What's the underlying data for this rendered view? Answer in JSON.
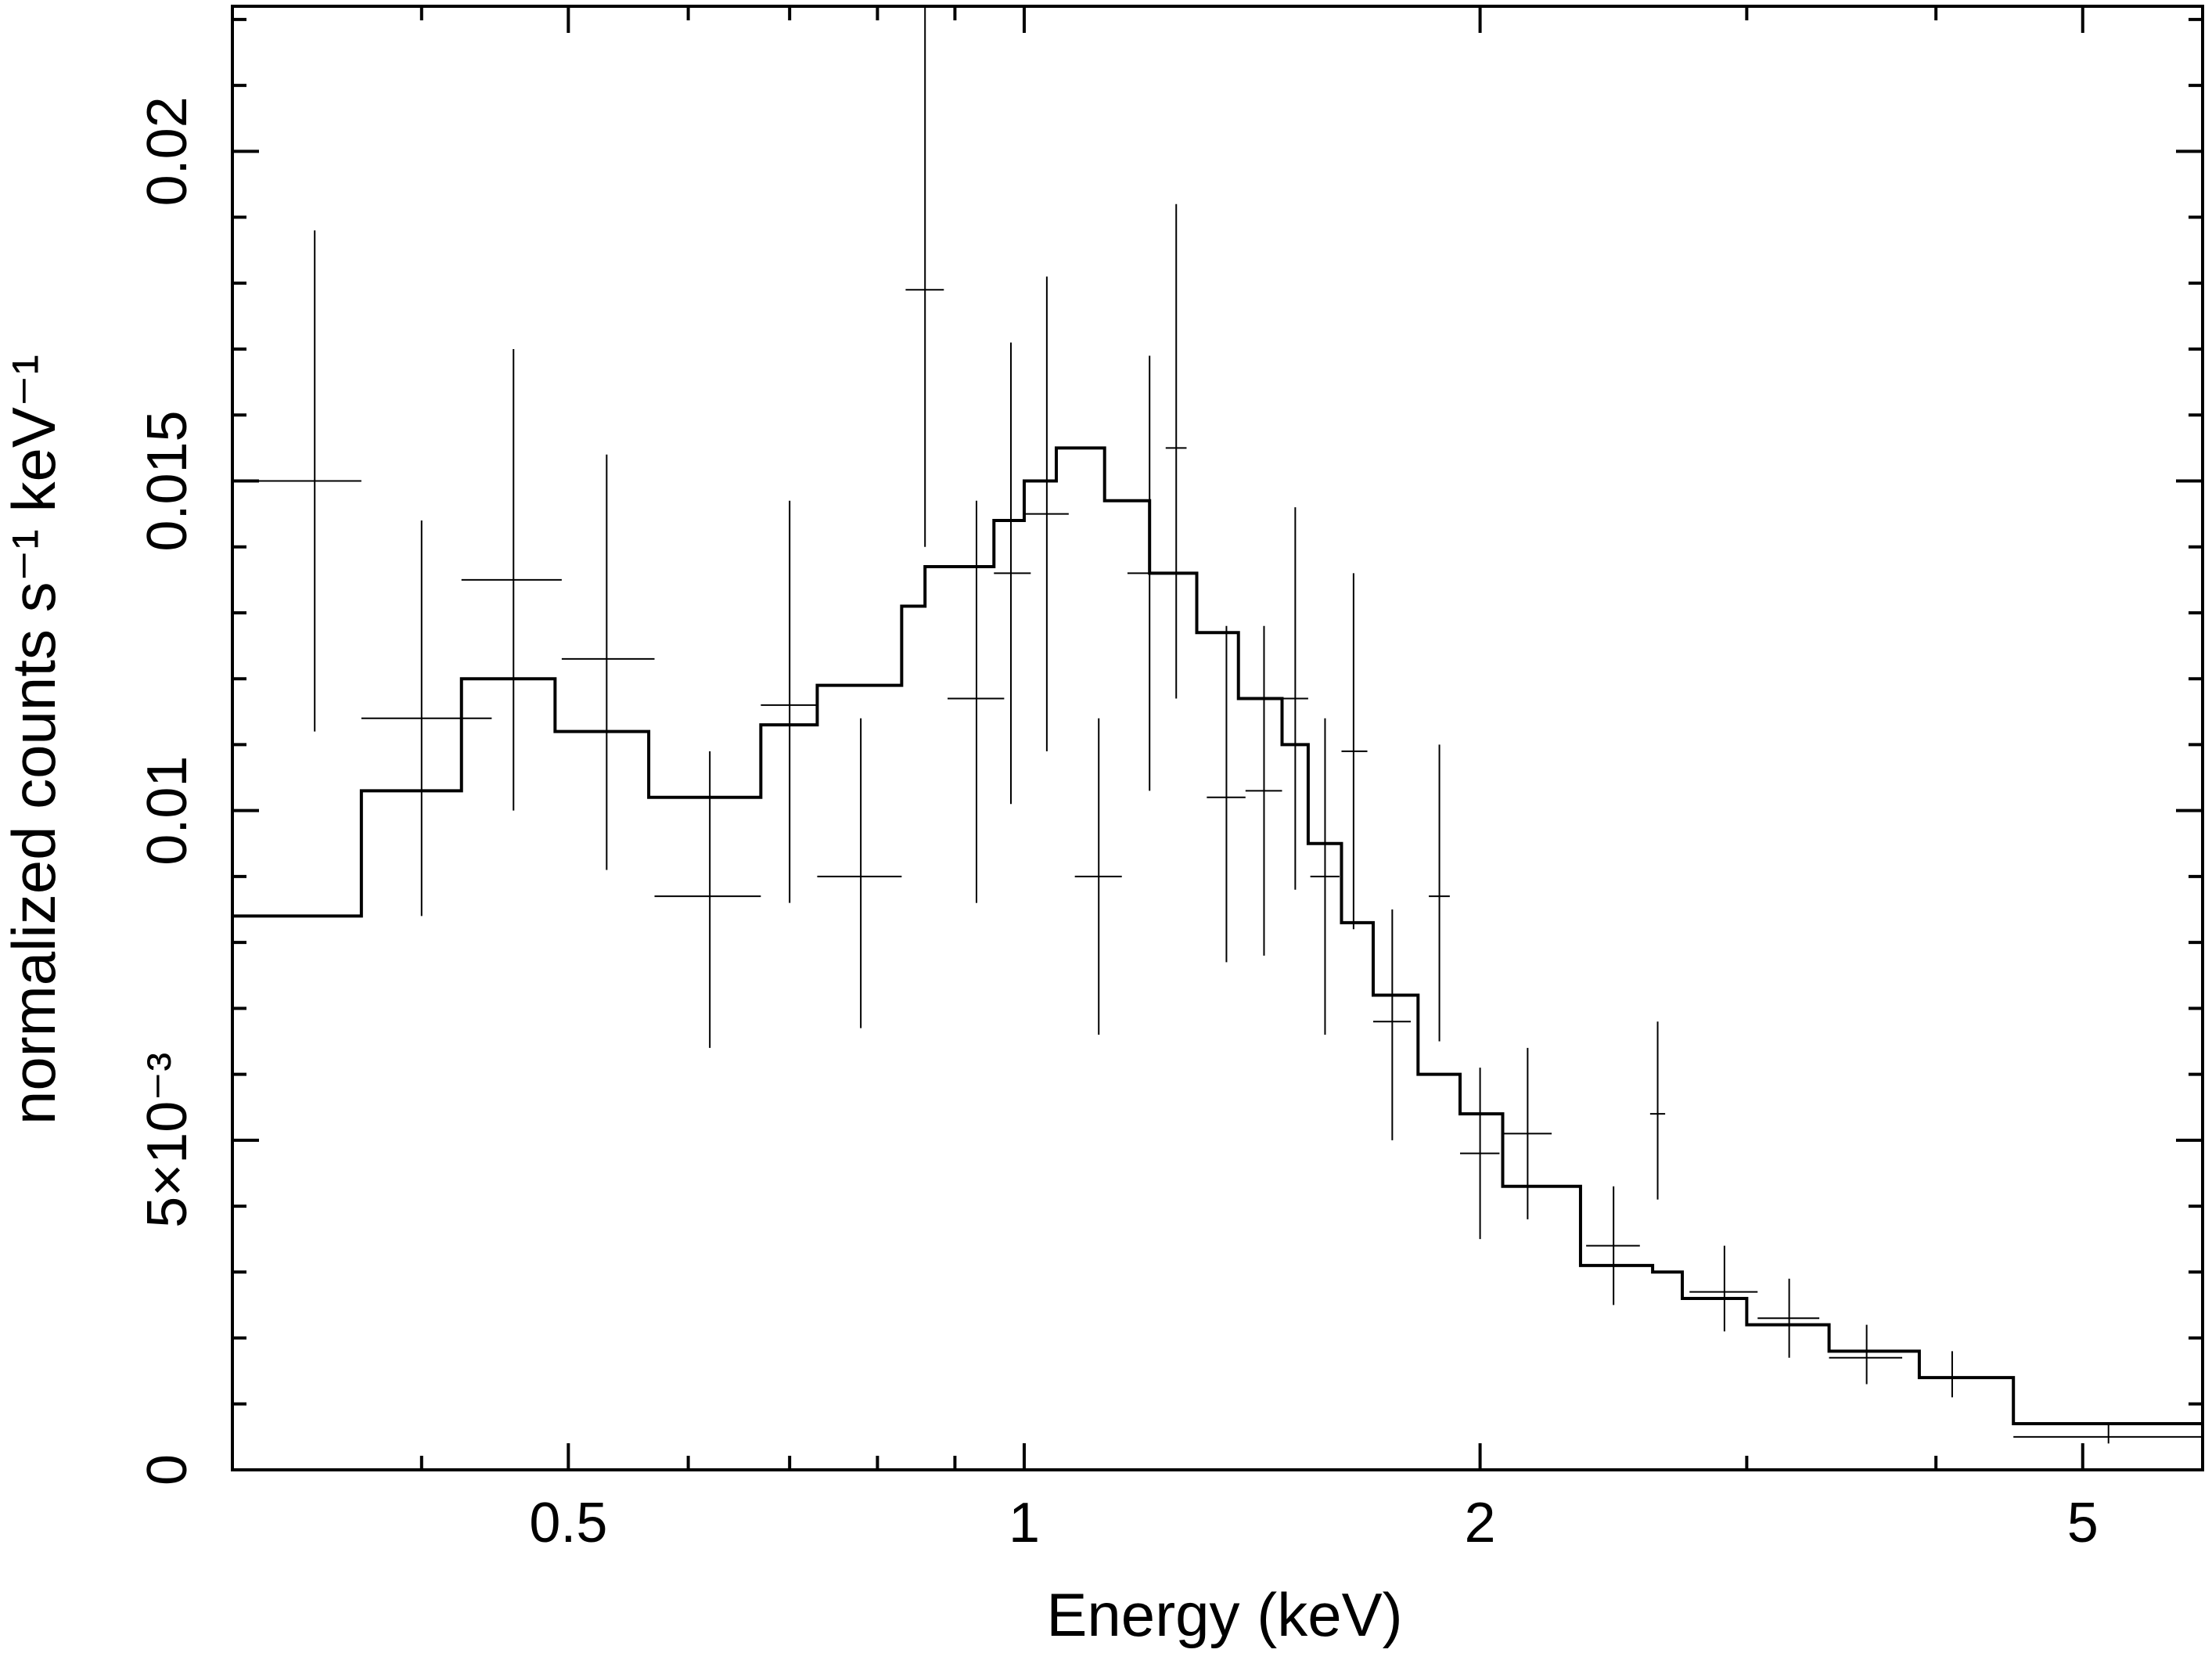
{
  "chart_data": {
    "type": "scatter",
    "title": "",
    "xlabel": "Energy (keV)",
    "ylabel": "normalized counts s⁻¹ keV⁻¹",
    "xscale": "log",
    "xlim": [
      0.3,
      6.0
    ],
    "ylim": [
      0,
      0.0222
    ],
    "grid": false,
    "x_ticks": [
      {
        "value": 0.5,
        "label": "0.5"
      },
      {
        "value": 1,
        "label": "1"
      },
      {
        "value": 2,
        "label": "2"
      },
      {
        "value": 5,
        "label": "5"
      }
    ],
    "y_ticks": [
      {
        "value": 0,
        "label": "0"
      },
      {
        "value": 0.005,
        "label": "5×10⁻³"
      },
      {
        "value": 0.01,
        "label": "0.01"
      },
      {
        "value": 0.015,
        "label": "0.015"
      },
      {
        "value": 0.02,
        "label": "0.02"
      }
    ],
    "series": [
      {
        "kind": "data_with_errors",
        "points": [
          {
            "x": 0.34,
            "xlo": 0.3,
            "xhi": 0.365,
            "y": 0.015,
            "ylo": 0.0112,
            "yhi": 0.0188
          },
          {
            "x": 0.4,
            "xlo": 0.365,
            "xhi": 0.445,
            "y": 0.0114,
            "ylo": 0.0084,
            "yhi": 0.0144
          },
          {
            "x": 0.46,
            "xlo": 0.425,
            "xhi": 0.495,
            "y": 0.0135,
            "ylo": 0.01,
            "yhi": 0.017
          },
          {
            "x": 0.53,
            "xlo": 0.495,
            "xhi": 0.57,
            "y": 0.0123,
            "ylo": 0.0091,
            "yhi": 0.0154
          },
          {
            "x": 0.62,
            "xlo": 0.57,
            "xhi": 0.67,
            "y": 0.0087,
            "ylo": 0.0064,
            "yhi": 0.0109
          },
          {
            "x": 0.7,
            "xlo": 0.67,
            "xhi": 0.73,
            "y": 0.0116,
            "ylo": 0.0086,
            "yhi": 0.0147
          },
          {
            "x": 0.78,
            "xlo": 0.73,
            "xhi": 0.83,
            "y": 0.009,
            "ylo": 0.0067,
            "yhi": 0.0114
          },
          {
            "x": 0.86,
            "xlo": 0.835,
            "xhi": 0.885,
            "y": 0.0179,
            "ylo": 0.014,
            "yhi": 0.0222
          },
          {
            "x": 0.93,
            "xlo": 0.89,
            "xhi": 0.97,
            "y": 0.0117,
            "ylo": 0.0086,
            "yhi": 0.0147
          },
          {
            "x": 0.98,
            "xlo": 0.955,
            "xhi": 1.01,
            "y": 0.0136,
            "ylo": 0.0101,
            "yhi": 0.0171
          },
          {
            "x": 1.035,
            "xlo": 1.0,
            "xhi": 1.07,
            "y": 0.0145,
            "ylo": 0.0109,
            "yhi": 0.0181
          },
          {
            "x": 1.12,
            "xlo": 1.08,
            "xhi": 1.16,
            "y": 0.009,
            "ylo": 0.0066,
            "yhi": 0.0114
          },
          {
            "x": 1.21,
            "xlo": 1.17,
            "xhi": 1.25,
            "y": 0.0136,
            "ylo": 0.0103,
            "yhi": 0.0169
          },
          {
            "x": 1.26,
            "xlo": 1.24,
            "xhi": 1.28,
            "y": 0.0155,
            "ylo": 0.0117,
            "yhi": 0.0192
          },
          {
            "x": 1.36,
            "xlo": 1.32,
            "xhi": 1.4,
            "y": 0.0102,
            "ylo": 0.0077,
            "yhi": 0.0128
          },
          {
            "x": 1.44,
            "xlo": 1.4,
            "xhi": 1.48,
            "y": 0.0103,
            "ylo": 0.0078,
            "yhi": 0.0128
          },
          {
            "x": 1.51,
            "xlo": 1.48,
            "xhi": 1.54,
            "y": 0.0117,
            "ylo": 0.0088,
            "yhi": 0.0146
          },
          {
            "x": 1.58,
            "xlo": 1.545,
            "xhi": 1.615,
            "y": 0.009,
            "ylo": 0.0066,
            "yhi": 0.0114
          },
          {
            "x": 1.65,
            "xlo": 1.62,
            "xhi": 1.685,
            "y": 0.0109,
            "ylo": 0.0082,
            "yhi": 0.0136
          },
          {
            "x": 1.75,
            "xlo": 1.7,
            "xhi": 1.8,
            "y": 0.0068,
            "ylo": 0.005,
            "yhi": 0.0085
          },
          {
            "x": 1.88,
            "xlo": 1.85,
            "xhi": 1.91,
            "y": 0.0087,
            "ylo": 0.0065,
            "yhi": 0.011
          },
          {
            "x": 2.0,
            "xlo": 1.94,
            "xhi": 2.06,
            "y": 0.0048,
            "ylo": 0.0035,
            "yhi": 0.0061
          },
          {
            "x": 2.15,
            "xlo": 2.07,
            "xhi": 2.23,
            "y": 0.0051,
            "ylo": 0.0038,
            "yhi": 0.0064
          },
          {
            "x": 2.45,
            "xlo": 2.35,
            "xhi": 2.55,
            "y": 0.0034,
            "ylo": 0.0025,
            "yhi": 0.0043
          },
          {
            "x": 2.62,
            "xlo": 2.59,
            "xhi": 2.65,
            "y": 0.0054,
            "ylo": 0.0041,
            "yhi": 0.0068
          },
          {
            "x": 2.9,
            "xlo": 2.75,
            "xhi": 3.05,
            "y": 0.0027,
            "ylo": 0.0021,
            "yhi": 0.0034
          },
          {
            "x": 3.2,
            "xlo": 3.05,
            "xhi": 3.35,
            "y": 0.0023,
            "ylo": 0.0017,
            "yhi": 0.0029
          },
          {
            "x": 3.6,
            "xlo": 3.4,
            "xhi": 3.8,
            "y": 0.0017,
            "ylo": 0.0013,
            "yhi": 0.0022
          },
          {
            "x": 4.1,
            "xlo": 3.9,
            "xhi": 4.3,
            "y": 0.0014,
            "ylo": 0.0011,
            "yhi": 0.0018
          },
          {
            "x": 5.2,
            "xlo": 4.5,
            "xhi": 6.0,
            "y": 0.0005,
            "ylo": 0.0004,
            "yhi": 0.0007
          }
        ]
      },
      {
        "kind": "model_step",
        "bins": [
          {
            "xlo": 0.3,
            "xhi": 0.365,
            "y": 0.0084
          },
          {
            "xlo": 0.365,
            "xhi": 0.425,
            "y": 0.0103
          },
          {
            "xlo": 0.425,
            "xhi": 0.49,
            "y": 0.012
          },
          {
            "xlo": 0.49,
            "xhi": 0.565,
            "y": 0.0112
          },
          {
            "xlo": 0.565,
            "xhi": 0.67,
            "y": 0.0102
          },
          {
            "xlo": 0.67,
            "xhi": 0.73,
            "y": 0.0113
          },
          {
            "xlo": 0.73,
            "xhi": 0.83,
            "y": 0.0119
          },
          {
            "xlo": 0.83,
            "xhi": 0.86,
            "y": 0.0131
          },
          {
            "xlo": 0.86,
            "xhi": 0.955,
            "y": 0.0137
          },
          {
            "xlo": 0.955,
            "xhi": 1.0,
            "y": 0.0144
          },
          {
            "xlo": 1.0,
            "xhi": 1.05,
            "y": 0.015
          },
          {
            "xlo": 1.05,
            "xhi": 1.13,
            "y": 0.0155
          },
          {
            "xlo": 1.13,
            "xhi": 1.21,
            "y": 0.0147
          },
          {
            "xlo": 1.21,
            "xhi": 1.3,
            "y": 0.0136
          },
          {
            "xlo": 1.3,
            "xhi": 1.385,
            "y": 0.0127
          },
          {
            "xlo": 1.385,
            "xhi": 1.48,
            "y": 0.0117
          },
          {
            "xlo": 1.48,
            "xhi": 1.54,
            "y": 0.011
          },
          {
            "xlo": 1.54,
            "xhi": 1.62,
            "y": 0.0095
          },
          {
            "xlo": 1.62,
            "xhi": 1.7,
            "y": 0.0083
          },
          {
            "xlo": 1.7,
            "xhi": 1.82,
            "y": 0.0072
          },
          {
            "xlo": 1.82,
            "xhi": 1.94,
            "y": 0.006
          },
          {
            "xlo": 1.94,
            "xhi": 2.07,
            "y": 0.0054
          },
          {
            "xlo": 2.07,
            "xhi": 2.33,
            "y": 0.0043
          },
          {
            "xlo": 2.33,
            "xhi": 2.6,
            "y": 0.0031
          },
          {
            "xlo": 2.6,
            "xhi": 2.72,
            "y": 0.003
          },
          {
            "xlo": 2.72,
            "xhi": 3.0,
            "y": 0.0026
          },
          {
            "xlo": 3.0,
            "xhi": 3.4,
            "y": 0.0022
          },
          {
            "xlo": 3.4,
            "xhi": 3.9,
            "y": 0.0018
          },
          {
            "xlo": 3.9,
            "xhi": 4.5,
            "y": 0.0014
          },
          {
            "xlo": 4.5,
            "xhi": 6.0,
            "y": 0.0007
          }
        ]
      }
    ]
  }
}
